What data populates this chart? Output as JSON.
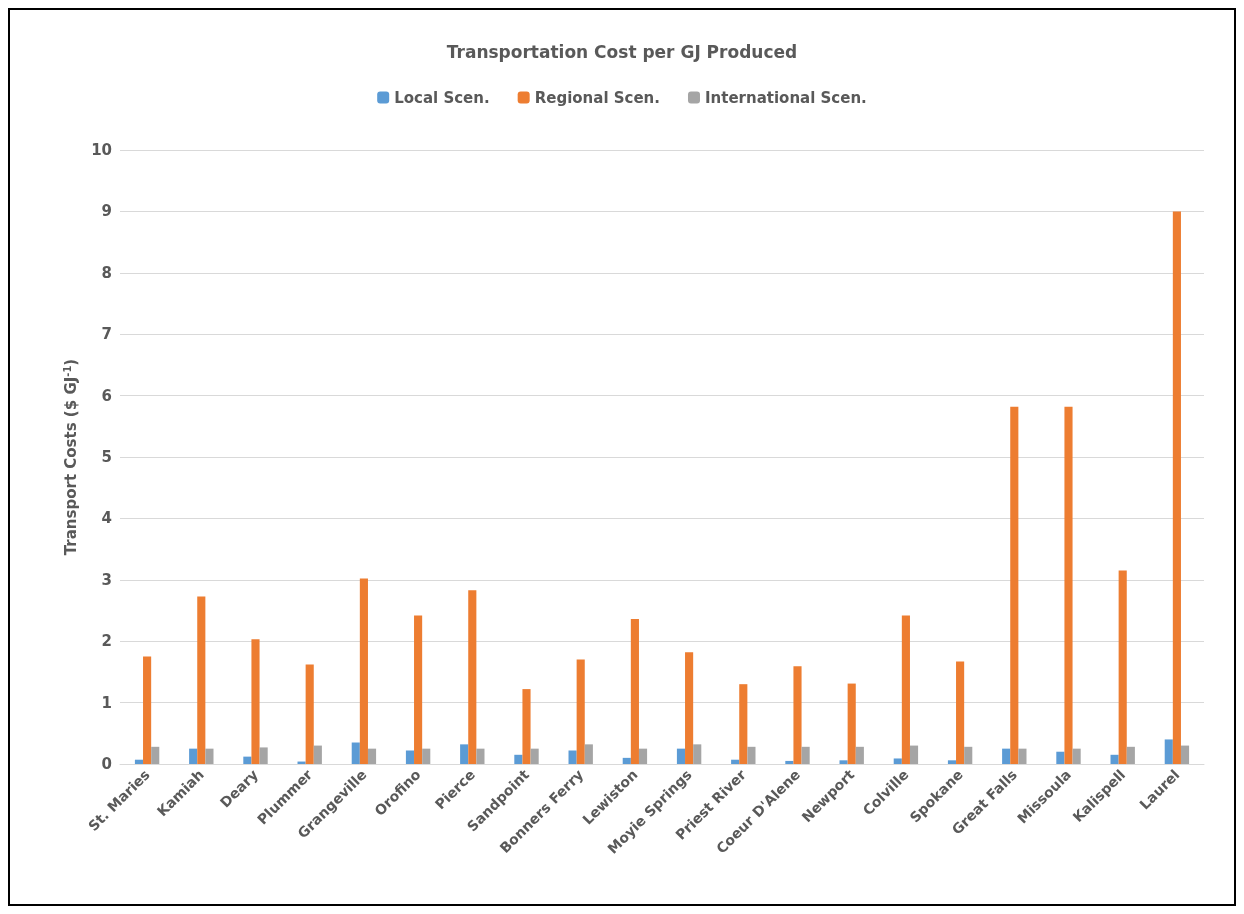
{
  "chart_data": {
    "type": "bar",
    "title": "Transportation Cost per GJ Produced",
    "ylabel": "Transport Costs ($ GJ$^{-1}$)",
    "categories": [
      "St. Maries",
      "Kamiah",
      "Deary",
      "Plummer",
      "Grangeville",
      "Orofino",
      "Pierce",
      "Sandpoint",
      "Bonners Ferry",
      "Lewiston",
      "Moyie Springs",
      "Priest River",
      "Coeur D'Alene",
      "Newport",
      "Colville",
      "Spokane",
      "Great Falls",
      "Missoula",
      "Kalispell",
      "Laurel"
    ],
    "series": [
      {
        "name": "Local Scen.",
        "color": "#5b9bd5",
        "values": [
          0.07,
          0.25,
          0.12,
          0.04,
          0.35,
          0.22,
          0.32,
          0.15,
          0.22,
          0.1,
          0.25,
          0.07,
          0.05,
          0.06,
          0.09,
          0.06,
          0.25,
          0.2,
          0.15,
          0.4
        ]
      },
      {
        "name": "Regional Scen.",
        "color": "#ed7d31",
        "values": [
          1.75,
          2.73,
          2.03,
          1.62,
          3.02,
          2.42,
          2.83,
          1.22,
          1.7,
          2.36,
          1.82,
          1.3,
          1.59,
          1.31,
          2.42,
          1.67,
          5.82,
          5.82,
          3.15,
          9.0
        ]
      },
      {
        "name": "International Scen.",
        "color": "#a5a5a5",
        "values": [
          0.28,
          0.25,
          0.27,
          0.3,
          0.25,
          0.25,
          0.25,
          0.25,
          0.32,
          0.25,
          0.32,
          0.28,
          0.28,
          0.28,
          0.3,
          0.28,
          0.25,
          0.25,
          0.28,
          0.3
        ]
      }
    ],
    "ylim": [
      0,
      10
    ],
    "yticks": [
      0,
      1,
      2,
      3,
      4,
      5,
      6,
      7,
      8,
      9,
      10
    ],
    "grid": "y",
    "legend": "top"
  }
}
